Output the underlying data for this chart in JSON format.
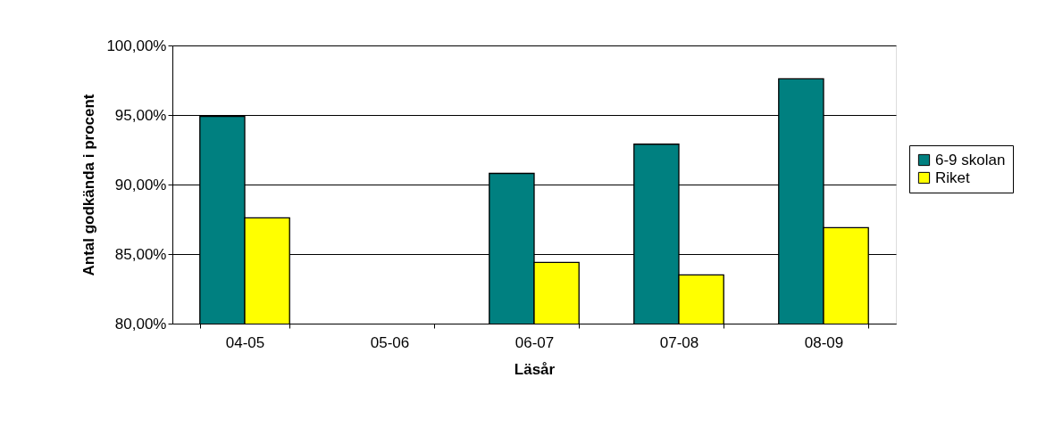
{
  "chart_data": {
    "type": "bar",
    "xlabel": "Läsår",
    "ylabel": "Antal godkända i procent",
    "categories": [
      "04-05",
      "05-06",
      "06-07",
      "07-08",
      "08-09"
    ],
    "series": [
      {
        "name": "6-9 skolan",
        "color": "#008080",
        "values": [
          94.9,
          null,
          90.8,
          92.9,
          97.6
        ]
      },
      {
        "name": "Riket",
        "color": "#ffff00",
        "values": [
          87.6,
          null,
          84.4,
          83.5,
          86.9
        ]
      }
    ],
    "ylim": [
      80,
      100
    ],
    "yticks": [
      {
        "value": 80,
        "label": "80,00%"
      },
      {
        "value": 85,
        "label": "85,00%"
      },
      {
        "value": 90,
        "label": "90,00%"
      },
      {
        "value": 95,
        "label": "95,00%"
      },
      {
        "value": 100,
        "label": "100,00%"
      }
    ],
    "grid": "y",
    "legend": "right"
  }
}
